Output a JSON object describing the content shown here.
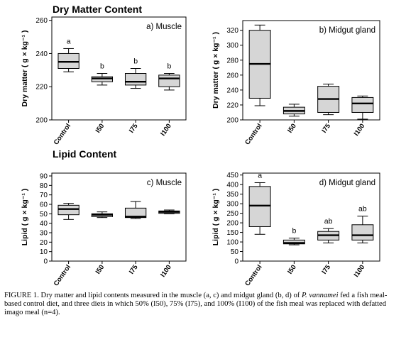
{
  "sections": {
    "top": "Dry Matter Content",
    "bottom": "Lipid Content"
  },
  "caption": {
    "p1": "FIGURE 1. Dry matter and lipid contents measured in the muscle (a, c) and midgut gland (b, d) of ",
    "species": "P. vannamei",
    "p2": " fed a fish meal-based control diet, and three diets in which 50% (I50), 75% (I75), and 100% (I100) of the fish meal was replaced with defatted imago meal (n=4)."
  },
  "chart_data": [
    {
      "type": "box",
      "panel_label": "a) Muscle",
      "ylabel": "Dry matter ( g × kg⁻¹ )",
      "categories": [
        "Control",
        "I50",
        "I75",
        "I100"
      ],
      "ylim": [
        200,
        262
      ],
      "yticks": [
        200,
        220,
        240,
        260
      ],
      "boxes": [
        {
          "min": 229,
          "q1": 231,
          "median": 235,
          "q3": 240,
          "max": 243
        },
        {
          "min": 221,
          "q1": 223,
          "median": 225,
          "q3": 226,
          "max": 228
        },
        {
          "min": 219,
          "q1": 221,
          "median": 223,
          "q3": 228,
          "max": 231
        },
        {
          "min": 218,
          "q1": 220,
          "median": 225,
          "q3": 227,
          "max": 228
        }
      ],
      "letters": [
        "a",
        "b",
        "b",
        "b"
      ]
    },
    {
      "type": "box",
      "panel_label": "b) Midgut gland",
      "ylabel": "Dry matter ( g × kg⁻¹ )",
      "categories": [
        "Control",
        "I50",
        "I75",
        "I100"
      ],
      "ylim": [
        200,
        333
      ],
      "yticks": [
        200,
        220,
        240,
        260,
        280,
        300,
        320
      ],
      "boxes": [
        {
          "min": 219,
          "q1": 229,
          "median": 275,
          "q3": 320,
          "max": 327
        },
        {
          "min": 205,
          "q1": 208,
          "median": 212,
          "q3": 217,
          "max": 221
        },
        {
          "min": 207,
          "q1": 210,
          "median": 228,
          "q3": 245,
          "max": 248
        },
        {
          "min": 201,
          "q1": 210,
          "median": 222,
          "q3": 230,
          "max": 232
        }
      ],
      "letters": []
    },
    {
      "type": "box",
      "panel_label": "c) Muscle",
      "ylabel": "Lipid ( g × kg⁻¹ )",
      "categories": [
        "Control",
        "I50",
        "I75",
        "I100"
      ],
      "ylim": [
        0,
        93
      ],
      "yticks": [
        0,
        10,
        20,
        30,
        40,
        50,
        60,
        70,
        80,
        90
      ],
      "boxes": [
        {
          "min": 44,
          "q1": 49,
          "median": 55,
          "q3": 59,
          "max": 61
        },
        {
          "min": 46,
          "q1": 47,
          "median": 49,
          "q3": 50,
          "max": 52
        },
        {
          "min": 45,
          "q1": 46,
          "median": 47,
          "q3": 56,
          "max": 63
        },
        {
          "min": 50,
          "q1": 50.5,
          "median": 52,
          "q3": 53,
          "max": 54
        }
      ],
      "letters": []
    },
    {
      "type": "box",
      "panel_label": "d) Midgut gland",
      "ylabel": "Lipid ( g × kg⁻¹ )",
      "categories": [
        "Control",
        "I50",
        "I75",
        "I100"
      ],
      "ylim": [
        0,
        460
      ],
      "yticks": [
        0,
        50,
        100,
        150,
        200,
        250,
        300,
        350,
        400,
        450
      ],
      "boxes": [
        {
          "min": 140,
          "q1": 180,
          "median": 290,
          "q3": 390,
          "max": 410
        },
        {
          "min": 85,
          "q1": 90,
          "median": 95,
          "q3": 110,
          "max": 120
        },
        {
          "min": 95,
          "q1": 110,
          "median": 135,
          "q3": 155,
          "max": 170
        },
        {
          "min": 95,
          "q1": 110,
          "median": 135,
          "q3": 190,
          "max": 235
        }
      ],
      "letters": [
        "a",
        "b",
        "ab",
        "ab"
      ]
    }
  ]
}
